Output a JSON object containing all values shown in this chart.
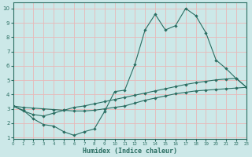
{
  "xlabel": "Humidex (Indice chaleur)",
  "x_values": [
    0,
    1,
    2,
    3,
    4,
    5,
    6,
    7,
    8,
    9,
    10,
    11,
    12,
    13,
    14,
    15,
    16,
    17,
    18,
    19,
    20,
    21,
    22,
    23
  ],
  "line1": [
    3.2,
    2.9,
    2.3,
    1.9,
    1.8,
    1.4,
    1.15,
    1.4,
    1.6,
    2.8,
    4.2,
    4.3,
    6.1,
    8.5,
    9.6,
    8.5,
    8.8,
    10.0,
    9.5,
    8.3,
    6.4,
    5.8,
    5.1,
    4.5
  ],
  "line2": [
    3.2,
    3.1,
    3.05,
    3.0,
    2.95,
    2.9,
    2.85,
    2.85,
    2.9,
    3.0,
    3.1,
    3.2,
    3.4,
    3.6,
    3.75,
    3.9,
    4.05,
    4.15,
    4.25,
    4.3,
    4.35,
    4.4,
    4.45,
    4.5
  ],
  "line3": [
    3.2,
    2.85,
    2.6,
    2.5,
    2.7,
    2.9,
    3.1,
    3.2,
    3.35,
    3.5,
    3.65,
    3.8,
    3.95,
    4.1,
    4.25,
    4.4,
    4.55,
    4.7,
    4.82,
    4.92,
    5.02,
    5.08,
    5.13,
    4.5
  ],
  "line_color": "#2a6e62",
  "bg_color": "#cce8e8",
  "grid_color": "#e8b8b8",
  "xlim": [
    0,
    23
  ],
  "ylim": [
    0.9,
    10.4
  ],
  "yticks": [
    1,
    2,
    3,
    4,
    5,
    6,
    7,
    8,
    9,
    10
  ],
  "xticks": [
    0,
    1,
    2,
    3,
    4,
    5,
    6,
    7,
    8,
    9,
    10,
    11,
    12,
    13,
    14,
    15,
    16,
    17,
    18,
    19,
    20,
    21,
    22,
    23
  ]
}
